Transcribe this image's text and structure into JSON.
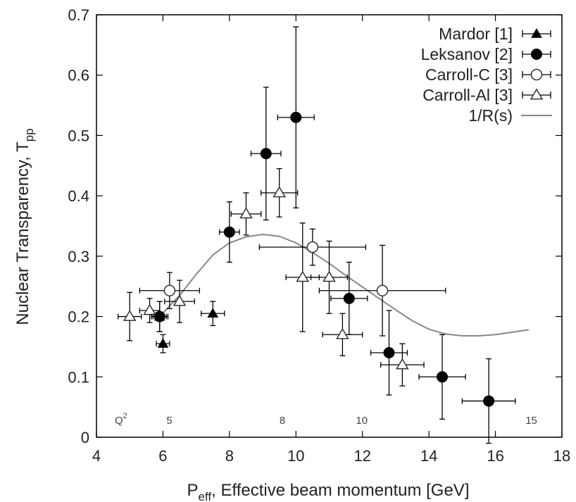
{
  "chart_data": {
    "type": "scatter",
    "xlabel": "P",
    "xlabel_sub": "eff",
    "xlabel_rest": ", Effective beam momentum [GeV]",
    "ylabel": "Nuclear Transparency, T",
    "ylabel_sub": "pp",
    "xlim": [
      4,
      18
    ],
    "ylim": [
      0,
      0.7
    ],
    "xticks": [
      4,
      6,
      8,
      10,
      12,
      14,
      16,
      18
    ],
    "yticks": [
      0,
      0.1,
      0.2,
      0.3,
      0.4,
      0.5,
      0.6,
      0.7
    ],
    "xtick_labels": [
      "4",
      "6",
      "8",
      "10",
      "12",
      "14",
      "16",
      "18"
    ],
    "ytick_labels": [
      "0",
      "0.1",
      "0.2",
      "0.3",
      "0.4",
      "0.5",
      "0.6",
      "0.7"
    ],
    "grid": false,
    "legend_position": "top-right",
    "q2_axis": {
      "label": "Q",
      "label_sup": "2",
      "ticks": [
        {
          "x": 6.4,
          "label": "5"
        },
        {
          "x": 9.8,
          "label": "8"
        },
        {
          "x": 12.1,
          "label": "10"
        },
        {
          "x": 17.2,
          "label": "15"
        }
      ]
    },
    "series": [
      {
        "name": "Mardor [1]",
        "marker": "filled-triangle",
        "points": [
          {
            "x": 5.9,
            "y": 0.2,
            "xerr": 0.2,
            "yerr": 0.025
          },
          {
            "x": 6.0,
            "y": 0.155,
            "xerr": 0.2,
            "yerr": 0.015
          },
          {
            "x": 7.5,
            "y": 0.205,
            "xerr": 0.35,
            "yerr": 0.02
          }
        ]
      },
      {
        "name": "Leksanov [2]",
        "marker": "filled-circle",
        "points": [
          {
            "x": 5.9,
            "y": 0.2,
            "xerr": 0.25,
            "yerr": 0.025
          },
          {
            "x": 8.0,
            "y": 0.34,
            "xerr": 0.3,
            "yerr": 0.05
          },
          {
            "x": 9.1,
            "y": 0.47,
            "xerr": 0.45,
            "yerr": 0.11
          },
          {
            "x": 10.0,
            "y": 0.53,
            "xerr": 0.55,
            "yerr": 0.15
          },
          {
            "x": 11.6,
            "y": 0.23,
            "xerr": 0.55,
            "yerr": 0.06
          },
          {
            "x": 12.8,
            "y": 0.14,
            "xerr": 0.55,
            "yerr": 0.07
          },
          {
            "x": 14.4,
            "y": 0.1,
            "xerr": 0.7,
            "yerr": 0.07
          },
          {
            "x": 15.8,
            "y": 0.06,
            "xerr": 0.8,
            "yerr": 0.07
          }
        ]
      },
      {
        "name": "Carroll-C [3]",
        "marker": "open-circle",
        "points": [
          {
            "x": 6.2,
            "y": 0.243,
            "xerr": 0.9,
            "yerr": 0.03
          },
          {
            "x": 10.5,
            "y": 0.315,
            "xerr": 1.6,
            "yerr": 0.03
          },
          {
            "x": 12.6,
            "y": 0.243,
            "xerr": 1.9,
            "yerr": 0.075
          }
        ]
      },
      {
        "name": "Carroll-Al [3]",
        "marker": "open-triangle",
        "points": [
          {
            "x": 5.0,
            "y": 0.2,
            "xerr": 0.35,
            "yerr": 0.04
          },
          {
            "x": 5.6,
            "y": 0.21,
            "xerr": 0.3,
            "yerr": 0.02
          },
          {
            "x": 6.5,
            "y": 0.225,
            "xerr": 0.45,
            "yerr": 0.035
          },
          {
            "x": 8.5,
            "y": 0.37,
            "xerr": 0.45,
            "yerr": 0.035
          },
          {
            "x": 9.5,
            "y": 0.405,
            "xerr": 0.55,
            "yerr": 0.04
          },
          {
            "x": 10.2,
            "y": 0.265,
            "xerr": 0.5,
            "yerr": 0.09
          },
          {
            "x": 11.0,
            "y": 0.265,
            "xerr": 0.55,
            "yerr": 0.06
          },
          {
            "x": 11.4,
            "y": 0.17,
            "xerr": 0.6,
            "yerr": 0.035
          },
          {
            "x": 13.2,
            "y": 0.12,
            "xerr": 0.65,
            "yerr": 0.035
          }
        ]
      },
      {
        "name": "1/R(s)",
        "marker": "line",
        "color": "#888888",
        "points": [
          {
            "x": 5.9,
            "y": 0.2
          },
          {
            "x": 6.5,
            "y": 0.235
          },
          {
            "x": 7.0,
            "y": 0.27
          },
          {
            "x": 7.5,
            "y": 0.302
          },
          {
            "x": 8.0,
            "y": 0.322
          },
          {
            "x": 8.5,
            "y": 0.332
          },
          {
            "x": 9.0,
            "y": 0.336
          },
          {
            "x": 9.5,
            "y": 0.333
          },
          {
            "x": 10.0,
            "y": 0.322
          },
          {
            "x": 10.5,
            "y": 0.306
          },
          {
            "x": 11.0,
            "y": 0.288
          },
          {
            "x": 11.5,
            "y": 0.268
          },
          {
            "x": 12.0,
            "y": 0.249
          },
          {
            "x": 12.5,
            "y": 0.23
          },
          {
            "x": 13.0,
            "y": 0.211
          },
          {
            "x": 13.5,
            "y": 0.193
          },
          {
            "x": 14.0,
            "y": 0.179
          },
          {
            "x": 14.5,
            "y": 0.171
          },
          {
            "x": 15.0,
            "y": 0.168
          },
          {
            "x": 15.5,
            "y": 0.168
          },
          {
            "x": 16.0,
            "y": 0.17
          },
          {
            "x": 16.5,
            "y": 0.174
          },
          {
            "x": 17.0,
            "y": 0.178
          }
        ]
      }
    ]
  }
}
